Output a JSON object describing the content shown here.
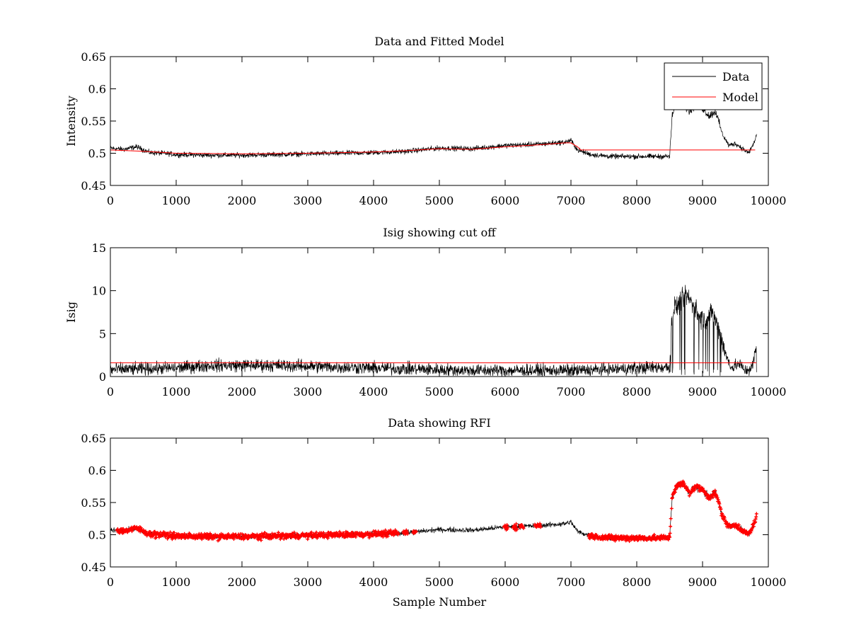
{
  "chart_data": [
    {
      "type": "line",
      "title": "Data and Fitted Model",
      "xlabel": "",
      "ylabel": "Intensity",
      "xlim": [
        0,
        10000
      ],
      "ylim": [
        0.45,
        0.65
      ],
      "xticks": [
        0,
        1000,
        2000,
        3000,
        4000,
        5000,
        6000,
        7000,
        8000,
        9000,
        10000
      ],
      "xtick_labels": [
        "0",
        "1000",
        "2000",
        "3000",
        "4000",
        "5000",
        "6000",
        "7000",
        "8000",
        "9000",
        "10000"
      ],
      "yticks": [
        0.45,
        0.5,
        0.55,
        0.6,
        0.65
      ],
      "ytick_labels": [
        "0.45",
        "0.5",
        "0.55",
        "0.6",
        "0.65"
      ],
      "legend": {
        "position": "top-right",
        "entries": [
          {
            "label": "Data",
            "color": "#000000"
          },
          {
            "label": "Model",
            "color": "#ff0000"
          }
        ]
      },
      "grid": false,
      "series": [
        {
          "name": "Data",
          "color": "#000000",
          "noise": 0.012,
          "x": [
            0,
            200,
            400,
            600,
            800,
            1000,
            1500,
            2000,
            2500,
            3000,
            3500,
            4000,
            4500,
            5000,
            5500,
            6000,
            6500,
            6900,
            7000,
            7100,
            7300,
            7600,
            8000,
            8500,
            8540,
            8600,
            8700,
            8800,
            8900,
            9000,
            9100,
            9200,
            9300,
            9400,
            9500,
            9600,
            9700,
            9800,
            9820
          ],
          "y": [
            0.508,
            0.506,
            0.51,
            0.501,
            0.5,
            0.498,
            0.497,
            0.497,
            0.498,
            0.499,
            0.5,
            0.501,
            0.503,
            0.508,
            0.507,
            0.512,
            0.514,
            0.517,
            0.52,
            0.505,
            0.498,
            0.495,
            0.495,
            0.495,
            0.56,
            0.575,
            0.58,
            0.565,
            0.575,
            0.57,
            0.558,
            0.565,
            0.53,
            0.512,
            0.515,
            0.508,
            0.5,
            0.52,
            0.53
          ]
        },
        {
          "name": "Model",
          "color": "#ff0000",
          "x": [
            0,
            500,
            1000,
            2000,
            3000,
            4000,
            4500,
            5000,
            5500,
            6000,
            6500,
            6900,
            7000,
            7100,
            7150,
            8530,
            8530,
            9800
          ],
          "y": [
            0.505,
            0.503,
            0.5,
            0.499,
            0.5,
            0.502,
            0.504,
            0.507,
            0.506,
            0.51,
            0.513,
            0.516,
            0.516,
            0.51,
            0.505,
            0.505,
            0.505,
            0.505
          ]
        }
      ]
    },
    {
      "type": "line",
      "title": "Isig showing cut off",
      "xlabel": "",
      "ylabel": "Isig",
      "xlim": [
        0,
        10000
      ],
      "ylim": [
        0,
        15
      ],
      "xticks": [
        0,
        1000,
        2000,
        3000,
        4000,
        5000,
        6000,
        7000,
        8000,
        9000,
        10000
      ],
      "xtick_labels": [
        "0",
        "1000",
        "2000",
        "3000",
        "4000",
        "5000",
        "6000",
        "7000",
        "8000",
        "9000",
        "10000"
      ],
      "yticks": [
        0,
        5,
        10,
        15
      ],
      "ytick_labels": [
        "0",
        "5",
        "10",
        "15"
      ],
      "grid": false,
      "series": [
        {
          "color": "#000000",
          "noise": 1.1,
          "x": [
            0,
            1000,
            1500,
            2000,
            2500,
            3000,
            3500,
            4000,
            4500,
            5000,
            5500,
            6000,
            6500,
            7000,
            7500,
            8000,
            8500,
            8530,
            8560,
            8650,
            8750,
            8850,
            8950,
            9050,
            9150,
            9250,
            9350,
            9450,
            9550,
            9650,
            9750,
            9820
          ],
          "y": [
            0.8,
            1.0,
            1.3,
            1.3,
            1.3,
            1.2,
            1.1,
            1.0,
            0.9,
            0.8,
            0.7,
            0.7,
            0.7,
            0.7,
            0.8,
            1.0,
            1.1,
            6.0,
            8.0,
            8.5,
            9.5,
            8.5,
            7.0,
            6.5,
            7.5,
            5.5,
            2.5,
            1.0,
            1.5,
            0.7,
            1.0,
            3.5
          ]
        },
        {
          "color": "#ff0000",
          "x": [
            0,
            9820
          ],
          "y": [
            1.6,
            1.6
          ]
        }
      ]
    },
    {
      "type": "scatter",
      "title": "Data showing RFI",
      "xlabel": "Sample Number",
      "ylabel": "",
      "xlim": [
        0,
        10000
      ],
      "ylim": [
        0.45,
        0.65
      ],
      "xticks": [
        0,
        1000,
        2000,
        3000,
        4000,
        5000,
        6000,
        7000,
        8000,
        9000,
        10000
      ],
      "xtick_labels": [
        "0",
        "1000",
        "2000",
        "3000",
        "4000",
        "5000",
        "6000",
        "7000",
        "8000",
        "9000",
        "10000"
      ],
      "yticks": [
        0.45,
        0.5,
        0.55,
        0.6,
        0.65
      ],
      "ytick_labels": [
        "0.45",
        "0.5",
        "0.55",
        "0.6",
        "0.65"
      ],
      "grid": false,
      "series": [
        {
          "role": "data-line",
          "color": "#000000",
          "noise": 0.012,
          "x": [
            0,
            200,
            400,
            600,
            800,
            1000,
            1500,
            2000,
            2500,
            3000,
            3500,
            4000,
            4500,
            5000,
            5500,
            6000,
            6500,
            6900,
            7000,
            7100,
            7300,
            7600,
            8000,
            8500,
            8540,
            8600,
            8700,
            8800,
            8900,
            9000,
            9100,
            9200,
            9300,
            9400,
            9500,
            9600,
            9700,
            9800,
            9820
          ],
          "y": [
            0.508,
            0.506,
            0.51,
            0.501,
            0.5,
            0.498,
            0.497,
            0.497,
            0.498,
            0.499,
            0.5,
            0.501,
            0.503,
            0.508,
            0.507,
            0.512,
            0.514,
            0.517,
            0.52,
            0.505,
            0.498,
            0.495,
            0.495,
            0.495,
            0.56,
            0.575,
            0.58,
            0.565,
            0.575,
            0.57,
            0.558,
            0.565,
            0.53,
            0.512,
            0.515,
            0.508,
            0.5,
            0.52,
            0.53
          ]
        },
        {
          "role": "flagged-points",
          "color": "#ff0000",
          "marker": "+",
          "x_ranges": [
            [
              100,
              4380
            ],
            [
              4450,
              4520
            ],
            [
              4600,
              4650
            ],
            [
              5980,
              6040
            ],
            [
              6120,
              6180
            ],
            [
              6220,
              6280
            ],
            [
              6450,
              6540
            ],
            [
              7270,
              8520
            ],
            [
              8530,
              9820
            ]
          ]
        }
      ]
    }
  ]
}
